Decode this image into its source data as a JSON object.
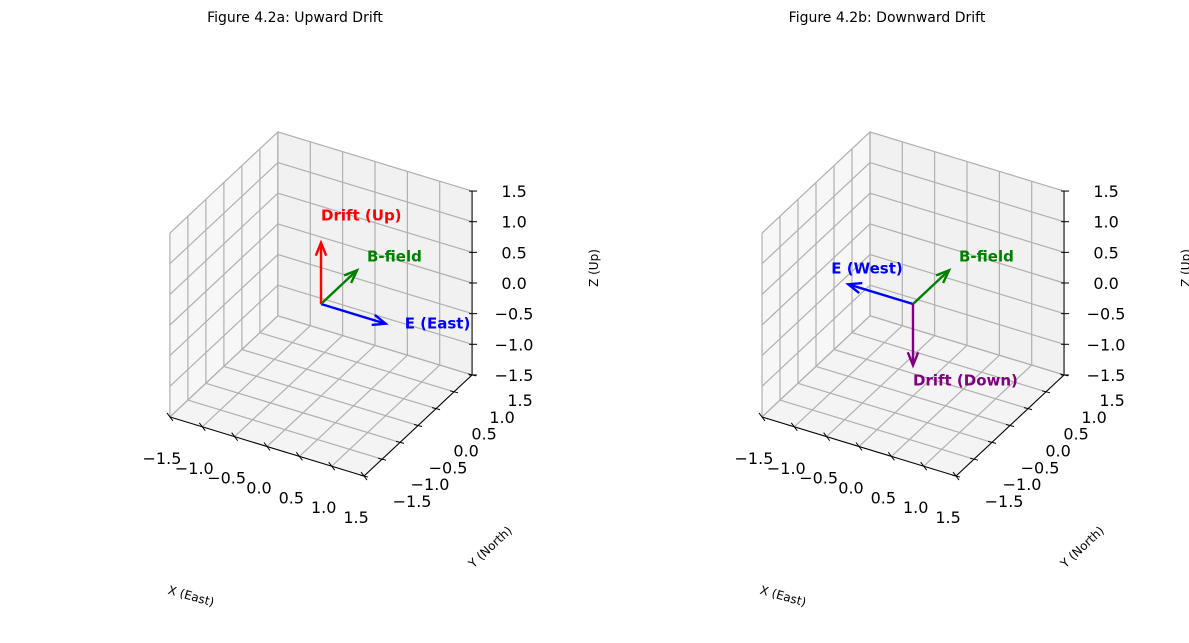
{
  "chart_data": [
    {
      "type": "3d-quiver",
      "title": "Figure 4.2a: Upward Drift",
      "xlabel": "X (East)",
      "ylabel": "Y (North)",
      "zlabel": "Z (Up)",
      "xlim": [
        -1.5,
        1.5
      ],
      "ylim": [
        -1.5,
        1.5
      ],
      "zlim": [
        -1.5,
        1.5
      ],
      "ticks": [
        -1.5,
        -1.0,
        -0.5,
        0.0,
        0.5,
        1.0,
        1.5
      ],
      "tick_labels": [
        "−1.5",
        "−1.0",
        "−0.5",
        "0.0",
        "0.5",
        "1.0",
        "1.5"
      ],
      "grid": true,
      "vectors": [
        {
          "label": "E (East)",
          "origin": [
            0,
            0,
            0
          ],
          "direction": [
            1,
            0,
            0
          ],
          "color": "#0000ff"
        },
        {
          "label": "B-field",
          "origin": [
            0,
            0,
            0
          ],
          "direction": [
            0,
            1,
            0
          ],
          "color": "#008000"
        },
        {
          "label": "Drift (Up)",
          "origin": [
            0,
            0,
            0
          ],
          "direction": [
            0,
            0,
            1
          ],
          "color": "#ff0000"
        }
      ]
    },
    {
      "type": "3d-quiver",
      "title": "Figure 4.2b: Downward Drift",
      "xlabel": "X (East)",
      "ylabel": "Y (North)",
      "zlabel": "Z (Up)",
      "xlim": [
        -1.5,
        1.5
      ],
      "ylim": [
        -1.5,
        1.5
      ],
      "zlim": [
        -1.5,
        1.5
      ],
      "ticks": [
        -1.5,
        -1.0,
        -0.5,
        0.0,
        0.5,
        1.0,
        1.5
      ],
      "tick_labels": [
        "−1.5",
        "−1.0",
        "−0.5",
        "0.0",
        "0.5",
        "1.0",
        "1.5"
      ],
      "grid": true,
      "vectors": [
        {
          "label": "E (West)",
          "origin": [
            0,
            0,
            0
          ],
          "direction": [
            -1,
            0,
            0
          ],
          "color": "#0000ff"
        },
        {
          "label": "B-field",
          "origin": [
            0,
            0,
            0
          ],
          "direction": [
            0,
            1,
            0
          ],
          "color": "#008000"
        },
        {
          "label": "Drift (Down)",
          "origin": [
            0,
            0,
            0
          ],
          "direction": [
            0,
            0,
            -1
          ],
          "color": "#800080"
        }
      ]
    }
  ]
}
